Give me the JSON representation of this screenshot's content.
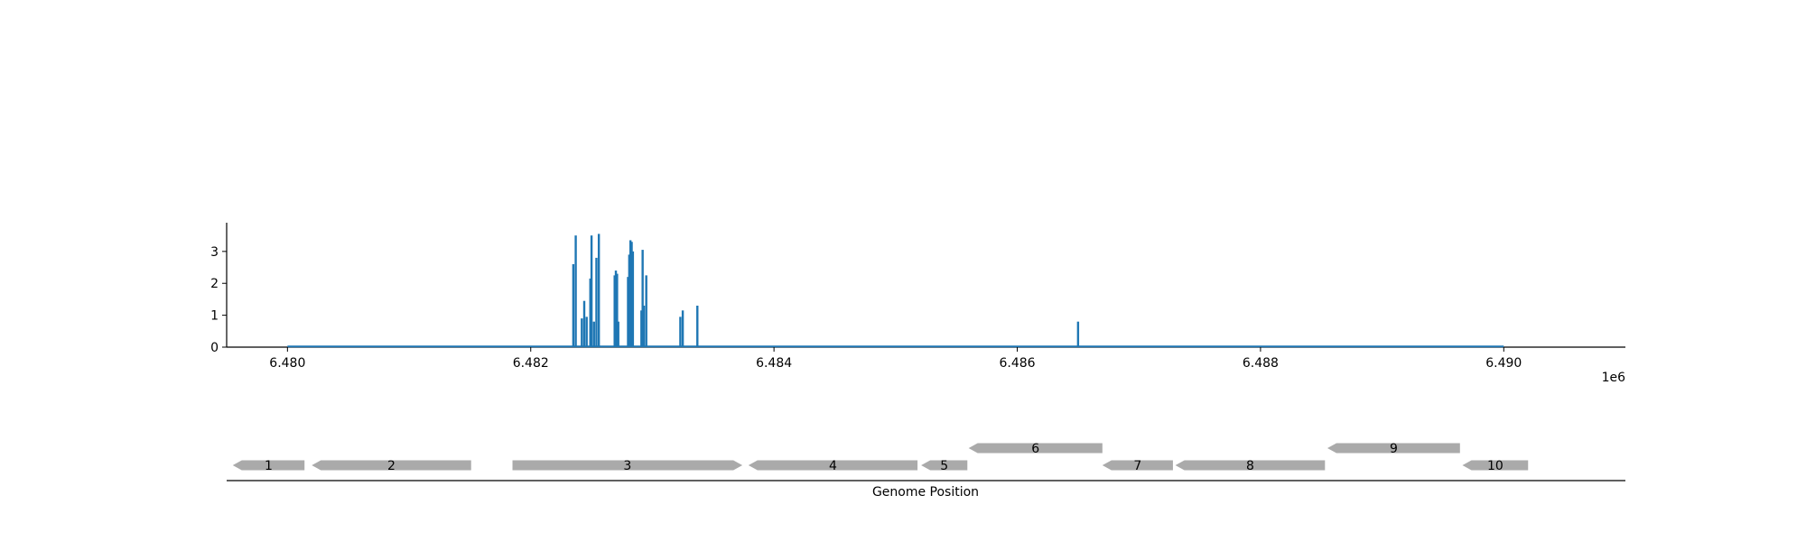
{
  "chart_data": [
    {
      "type": "bar",
      "title": "",
      "xlabel": "",
      "ylabel": "",
      "x_scale_label": "1e6",
      "xlim": [
        6479500,
        6491000
      ],
      "ylim": [
        0,
        3.9
      ],
      "x_ticks": [
        6480000,
        6482000,
        6484000,
        6486000,
        6488000,
        6490000
      ],
      "x_tick_labels": [
        "6.480",
        "6.482",
        "6.484",
        "6.486",
        "6.488",
        "6.490"
      ],
      "y_ticks": [
        0,
        1,
        2,
        3
      ],
      "y_tick_labels": [
        "0",
        "1",
        "2",
        "3"
      ],
      "baseline_range": [
        6480000,
        6490000
      ],
      "color": "#1f77b4",
      "grid": false,
      "legend": "none",
      "positions": [
        6482350,
        6482370,
        6482420,
        6482440,
        6482460,
        6482490,
        6482500,
        6482520,
        6482540,
        6482560,
        6482690,
        6482700,
        6482710,
        6482720,
        6482800,
        6482810,
        6482820,
        6482830,
        6482840,
        6482910,
        6482920,
        6482930,
        6482950,
        6483230,
        6483250,
        6483370,
        6486500
      ],
      "values": [
        2.6,
        3.5,
        0.9,
        1.45,
        0.95,
        2.15,
        3.5,
        0.8,
        2.8,
        3.55,
        2.25,
        2.4,
        2.3,
        0.8,
        2.2,
        2.9,
        3.35,
        3.3,
        3.0,
        1.15,
        3.05,
        1.3,
        2.25,
        0.95,
        1.15,
        1.3,
        0.8
      ]
    },
    {
      "type": "gene_track",
      "xlabel": "Genome Position",
      "color": "#aaaaaa",
      "genes": [
        {
          "label": "1",
          "start": 6479550,
          "end": 6480140,
          "strand": "-",
          "row": 0
        },
        {
          "label": "2",
          "start": 6480200,
          "end": 6481510,
          "strand": "-",
          "row": 0
        },
        {
          "label": "3",
          "start": 6481850,
          "end": 6483740,
          "strand": "+",
          "row": 0
        },
        {
          "label": "4",
          "start": 6483790,
          "end": 6485180,
          "strand": "-",
          "row": 0
        },
        {
          "label": "5",
          "start": 6485210,
          "end": 6485590,
          "strand": "-",
          "row": 0
        },
        {
          "label": "6",
          "start": 6485600,
          "end": 6486700,
          "strand": "-",
          "row": 1
        },
        {
          "label": "7",
          "start": 6486700,
          "end": 6487280,
          "strand": "-",
          "row": 0
        },
        {
          "label": "8",
          "start": 6487300,
          "end": 6488530,
          "strand": "-",
          "row": 0
        },
        {
          "label": "9",
          "start": 6488550,
          "end": 6489640,
          "strand": "-",
          "row": 1
        },
        {
          "label": "10",
          "start": 6489660,
          "end": 6490200,
          "strand": "-",
          "row": 0
        }
      ]
    }
  ]
}
